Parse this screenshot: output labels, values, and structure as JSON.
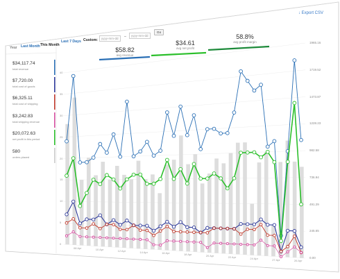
{
  "toolbar": {
    "range_buttons": [
      "Year",
      "Last Month",
      "This Month",
      "Last 7 Days"
    ],
    "custom_label": "Custom:",
    "start_placeholder": "yyyy-mm-dd",
    "separator": "–",
    "end_placeholder": "yyyy-mm-dd",
    "go_label": "Go",
    "export_label": "Export CSV"
  },
  "sidebar": {
    "stats": [
      {
        "value": "$34,117.74",
        "label": "total revenue",
        "color": "#2a6fb5"
      },
      {
        "value": "$7,720.00",
        "label": "total cost of goods",
        "color": "#2e3a9a"
      },
      {
        "value": "$6,325.11",
        "label": "total cost of shipping",
        "color": "#c0392b"
      },
      {
        "value": "$3,242.83",
        "label": "total shipping revenue",
        "color": "#d64fa0"
      },
      {
        "value": "$20,072.63",
        "label": "net profit in this period",
        "color": "#2bbf2b"
      },
      {
        "value": "580",
        "label": "orders placed",
        "color": "#cccccc"
      }
    ]
  },
  "summary": [
    {
      "value": "$58.82",
      "label": "avg revenue",
      "color": "#2a6fb5"
    },
    {
      "value": "$34.61",
      "label": "avg net profit",
      "color": "#2bbf2b"
    },
    {
      "value": "58.8%",
      "label": "avg profit margin",
      "color": "#1d8a3a"
    }
  ],
  "chart_data": {
    "type": "line",
    "left_axis_ticks": [
      "0",
      "5",
      "10",
      "15",
      "20",
      "25",
      "30",
      "35",
      "40"
    ],
    "right_axis_ticks": [
      "0.00",
      "245.65",
      "491.29",
      "736.94",
      "982.58",
      "1228.23",
      "1473.87",
      "1719.52",
      "1965.16"
    ],
    "x_labels": [
      "08 Apr",
      "10 Apr",
      "12 Apr",
      "14 Apr",
      "16 Apr",
      "18 Apr",
      "20 Apr",
      "22 Apr",
      "24 Apr",
      "27 Apr",
      "26 Apr"
    ],
    "bars": [
      28,
      34,
      15,
      20,
      16,
      19,
      15,
      18,
      16,
      15,
      19,
      15,
      16,
      12,
      18,
      19,
      24,
      18,
      20,
      14,
      16,
      19,
      18,
      20,
      22,
      22,
      10,
      18,
      20,
      6,
      18,
      22,
      18,
      17
    ],
    "series": [
      {
        "name": "revenue",
        "color": "#2a6fb5",
        "values": [
          24,
          39,
          19,
          19,
          20,
          23,
          21,
          25,
          20,
          32,
          20,
          21,
          23,
          20,
          21,
          29,
          24,
          30,
          24,
          28,
          21,
          25,
          25,
          24,
          24,
          28,
          36,
          34,
          32,
          33,
          21,
          22,
          4,
          20,
          37,
          22
        ]
      },
      {
        "name": "net profit",
        "color": "#2bbf2b",
        "values": [
          16,
          20,
          9,
          12,
          15,
          14,
          16,
          15,
          13,
          15,
          16,
          16,
          14,
          14,
          15,
          19,
          15,
          17,
          14,
          18,
          15,
          15,
          16,
          15,
          13,
          15,
          20,
          20,
          20,
          19,
          20,
          18,
          3,
          18,
          29,
          10
        ]
      },
      {
        "name": "cost of goods",
        "color": "#2e3a9a",
        "values": [
          7,
          10,
          5,
          6,
          6,
          7,
          5,
          6,
          5,
          6,
          5,
          5,
          5,
          4,
          5,
          6,
          5,
          6,
          5,
          5,
          4,
          5,
          5,
          5,
          5,
          5,
          6,
          6,
          6,
          7,
          6,
          6,
          1,
          5,
          5,
          2
        ]
      },
      {
        "name": "cost of shipping",
        "color": "#c0392b",
        "values": [
          5,
          6,
          4,
          4,
          5,
          4,
          5,
          5,
          4,
          4,
          5,
          4,
          4,
          3,
          4,
          5,
          4,
          4,
          4,
          4,
          4,
          4,
          5,
          5,
          5,
          5,
          4,
          5,
          5,
          6,
          4,
          4,
          1,
          2,
          4,
          1
        ]
      },
      {
        "name": "shipping revenue",
        "color": "#d64fa0",
        "values": [
          2,
          3,
          2,
          2,
          2,
          2,
          2,
          2,
          2,
          2,
          2,
          2,
          2,
          1,
          1,
          2,
          2,
          2,
          2,
          2,
          2,
          1,
          2,
          2,
          2,
          2,
          2,
          2,
          2,
          3,
          2,
          2,
          0,
          1,
          2,
          1
        ]
      }
    ]
  }
}
